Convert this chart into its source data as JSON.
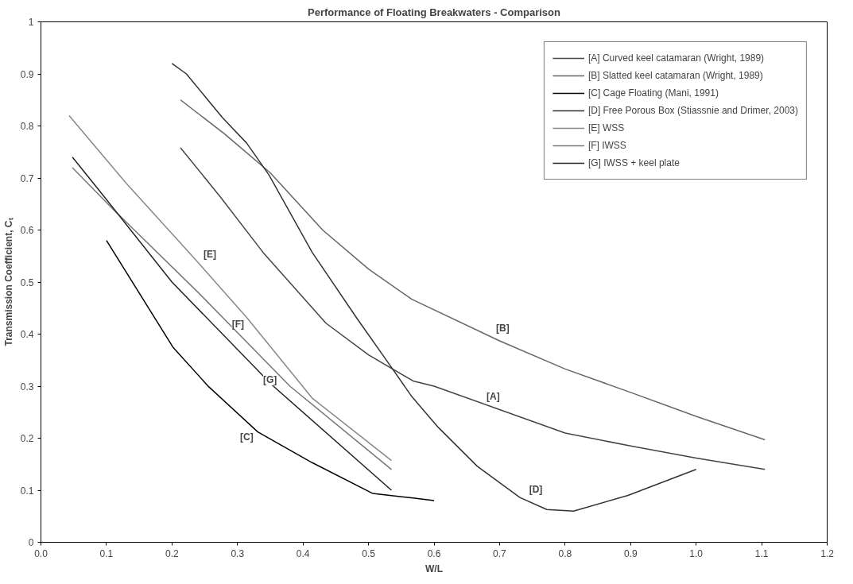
{
  "chart_data": {
    "type": "line",
    "title": "Performance of Floating Breakwaters - Comparison",
    "xlabel": "W/L",
    "ylabel": "Transmission Coefficient, Cₜ",
    "xlim": [
      0,
      1.2
    ],
    "ylim": [
      0,
      1
    ],
    "xticks": [
      {
        "value": 0,
        "label": "0.0"
      },
      0.1,
      0.2,
      0.3,
      0.4,
      0.5,
      0.6,
      0.7,
      0.8,
      0.9,
      {
        "value": 1,
        "label": "1.0"
      },
      1.1,
      1.2
    ],
    "yticks": [
      0,
      0.1,
      0.2,
      0.3,
      0.4,
      0.5,
      0.6,
      0.7,
      0.8,
      0.9,
      1
    ],
    "grid": false,
    "legend": "top right",
    "marker": "none",
    "line_style": "solid",
    "series": [
      {
        "name": "[A] Curved keel catamaran (Wright, 1989)",
        "color": "#444444",
        "x": [
          0.213,
          0.273,
          0.339,
          0.435,
          0.5,
          0.568,
          0.6,
          0.7,
          0.8,
          0.9,
          1.0,
          1.105
        ],
        "values": [
          0.758,
          0.665,
          0.557,
          0.421,
          0.36,
          0.31,
          0.3,
          0.255,
          0.21,
          0.185,
          0.162,
          0.14
        ]
      },
      {
        "name": "[B] Slatted keel catamaran (Wright, 1989)",
        "color": "#666666",
        "x": [
          0.213,
          0.28,
          0.35,
          0.43,
          0.5,
          0.566,
          0.7,
          0.8,
          0.9,
          1.0,
          1.105
        ],
        "values": [
          0.85,
          0.785,
          0.71,
          0.6,
          0.525,
          0.467,
          0.387,
          0.333,
          0.288,
          0.242,
          0.197
        ]
      },
      {
        "name": "[C] Cage Floating (Mani, 1991)",
        "color": "#000000",
        "x": [
          0.1,
          0.148,
          0.202,
          0.256,
          0.331,
          0.414,
          0.506,
          0.568,
          0.6
        ],
        "values": [
          0.58,
          0.483,
          0.374,
          0.299,
          0.212,
          0.153,
          0.094,
          0.085,
          0.08
        ]
      },
      {
        "name": "[D] Free Porous Box (Stiassnie and Drimer, 2003)",
        "color": "#333333",
        "x": [
          0.2,
          0.222,
          0.277,
          0.314,
          0.348,
          0.414,
          0.483,
          0.535,
          0.566,
          0.607,
          0.666,
          0.731,
          0.772,
          0.813,
          0.896,
          1.0
        ],
        "values": [
          0.92,
          0.9,
          0.816,
          0.767,
          0.706,
          0.557,
          0.429,
          0.336,
          0.28,
          0.22,
          0.146,
          0.086,
          0.063,
          0.06,
          0.09,
          0.14
        ]
      },
      {
        "name": "[E] WSS",
        "color": "#888888",
        "x": [
          0.043,
          0.13,
          0.231,
          0.314,
          0.414,
          0.535
        ],
        "values": [
          0.82,
          0.69,
          0.55,
          0.432,
          0.277,
          0.157
        ]
      },
      {
        "name": "[F] IWSS",
        "color": "#777777",
        "x": [
          0.048,
          0.11,
          0.24,
          0.38,
          0.535
        ],
        "values": [
          0.72,
          0.64,
          0.48,
          0.3,
          0.14
        ]
      },
      {
        "name": "[G] IWSS + keel plate",
        "color": "#222222",
        "x": [
          0.048,
          0.089,
          0.2,
          0.352,
          0.535
        ],
        "values": [
          0.74,
          0.676,
          0.5,
          0.303,
          0.1
        ]
      }
    ],
    "annotations": [
      "[A]",
      "[B]",
      "[C]",
      "[D]",
      "[E]",
      "[F]",
      "[G]"
    ]
  }
}
